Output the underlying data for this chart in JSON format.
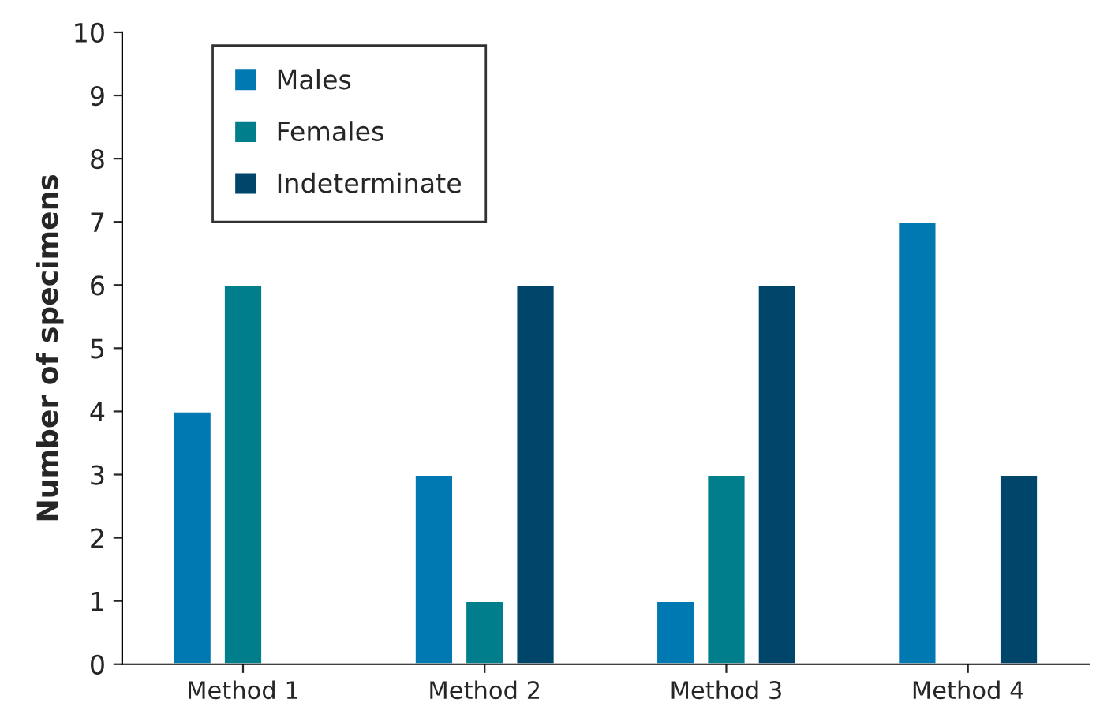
{
  "chart_data": {
    "type": "bar",
    "ylabel": "Number of specimens",
    "categories": [
      "Method 1",
      "Method 2",
      "Method 3",
      "Method 4"
    ],
    "series": [
      {
        "name": "Males",
        "color": "#0079b3",
        "values": [
          4,
          3,
          1,
          7
        ]
      },
      {
        "name": "Females",
        "color": "#007e8c",
        "values": [
          6,
          1,
          3,
          null
        ]
      },
      {
        "name": "Indeterminate",
        "color": "#00466b",
        "values": [
          null,
          6,
          6,
          3
        ]
      }
    ],
    "ylim": [
      0,
      10
    ],
    "yticks": [
      0,
      1,
      2,
      3,
      4,
      5,
      6,
      7,
      8,
      9,
      10
    ],
    "grid": false,
    "legend": "top left"
  }
}
